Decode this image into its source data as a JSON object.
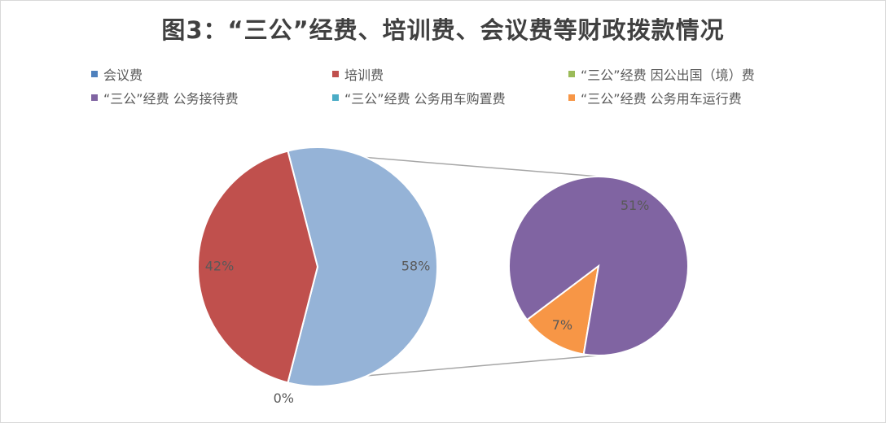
{
  "chart_data": {
    "type": "pie",
    "subtype": "pie-of-pie",
    "title": "图3：“三公”经费、培训费、会议费等财政拨款情况",
    "legend_position": "top",
    "series": [
      {
        "name": "会议费",
        "value": 0,
        "label": "0%",
        "color": "#4f81bd",
        "group": "main"
      },
      {
        "name": "培训费",
        "value": 42,
        "label": "42%",
        "color": "#c0504d",
        "group": "main"
      },
      {
        "name": "“三公”经费 因公出国（境）费",
        "value": 0,
        "label": "",
        "color": "#9bbb59",
        "group": "secondary"
      },
      {
        "name": "“三公”经费 公务接待费",
        "value": 51,
        "label": "51%",
        "color": "#8064a2",
        "group": "secondary"
      },
      {
        "name": "“三公”经费 公务用车购置费",
        "value": 0,
        "label": "",
        "color": "#4bacc6",
        "group": "secondary"
      },
      {
        "name": "“三公”经费 公务用车运行费",
        "value": 7,
        "label": "7%",
        "color": "#f79646",
        "group": "secondary"
      }
    ],
    "other_slice": {
      "value": 58,
      "label": "58%",
      "color": "#95b3d7"
    }
  }
}
